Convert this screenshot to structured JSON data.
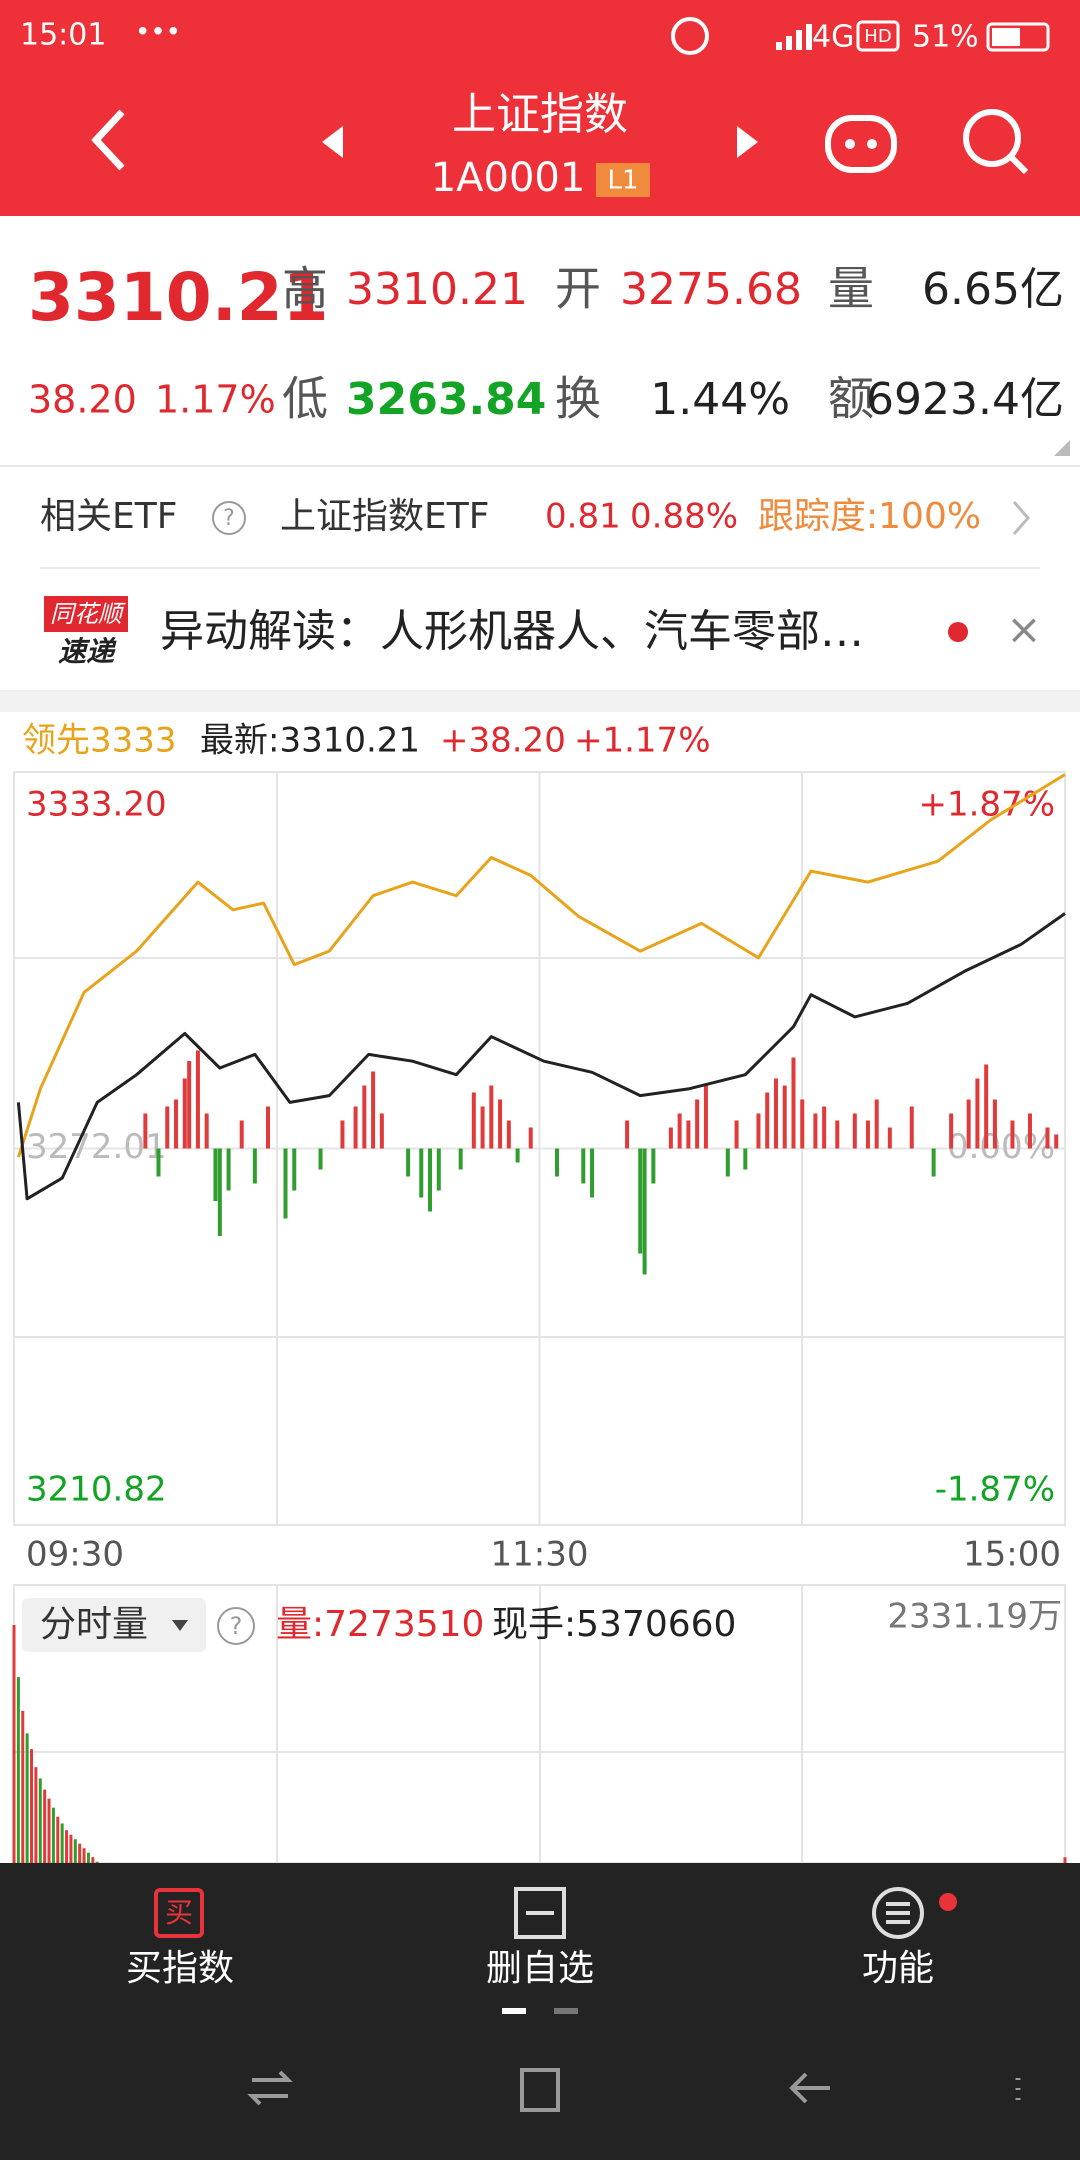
{
  "status_bar": {
    "time": "15:01",
    "dots": "•••",
    "network": "4G",
    "hd": "HD",
    "battery": "51%"
  },
  "header": {
    "title": "上证指数",
    "code": "1A0001",
    "level": "L1"
  },
  "quote": {
    "price": "3310.21",
    "change": "38.20",
    "change_pct": "1.17%",
    "high_label": "高",
    "high": "3310.21",
    "open_label": "开",
    "open": "3275.68",
    "volume_label": "量",
    "volume": "6.65亿",
    "low_label": "低",
    "low": "3263.84",
    "turnover_label": "换",
    "turnover": "1.44%",
    "amount_label": "额",
    "amount": "6923.4亿"
  },
  "etf": {
    "label": "相关ETF",
    "help": "?",
    "name": "上证指数ETF",
    "price": "0.81",
    "pct": "0.88%",
    "tracking": "跟踪度:100%"
  },
  "news": {
    "badge_top": "同花顺",
    "badge_bottom": "速递",
    "text": "异动解读：人形机器人、汽车零部…",
    "close": "×"
  },
  "chart_data": {
    "type": "line",
    "change": "+38.20",
    "change_pct": "+1.17%",
    "xlim": [
      0,
      240
    ],
    "xticks": [
      {
        "value": 0,
        "label": "09:30"
      },
      {
        "value": 120,
        "label": "11:30"
      },
      {
        "value": 240,
        "label": "15:00"
      }
    ],
    "ylim": [
      3210.82,
      3333.2
    ],
    "yticks": [
      3210.82,
      3272.01,
      {
        "value": 3333.2,
        "label": "3333.20"
      }
    ],
    "y2lim": [
      -1.87,
      1.87
    ],
    "y2ticks": [
      {
        "value": -1.87,
        "label": "-1.87%"
      },
      {
        "value": 0,
        "label": "0.00%"
      },
      {
        "value": 1.87,
        "label": "+1.87%"
      }
    ],
    "grid": true,
    "series": [
      {
        "name": "领先3333",
        "color": "#e8a31b",
        "x": [
          1,
          6,
          16,
          28,
          42,
          50,
          57,
          64,
          72,
          82,
          91,
          101,
          109,
          118,
          129,
          143,
          157,
          170,
          182,
          195,
          211,
          223,
          240
        ],
        "values": [
          3270.6,
          3281.7,
          3297.4,
          3304.1,
          3315.3,
          3310.8,
          3311.9,
          3301.9,
          3304.1,
          3313.1,
          3315.3,
          3313.1,
          3319.3,
          3316.4,
          3309.7,
          3304.1,
          3308.6,
          3303.0,
          3317.1,
          3315.3,
          3318.7,
          3325.4,
          3332.8
        ]
      },
      {
        "name": "最新:3310.21",
        "color": "#222222",
        "x": [
          1,
          3,
          11,
          19,
          28,
          39,
          47,
          55,
          63,
          72,
          81,
          91,
          101,
          109,
          121,
          132,
          143,
          154,
          167,
          178,
          182,
          192,
          204,
          217,
          230,
          240
        ],
        "values": [
          3279.5,
          3263.84,
          3267.2,
          3279.5,
          3284.0,
          3290.7,
          3285.1,
          3287.3,
          3279.5,
          3280.6,
          3287.3,
          3286.2,
          3284.0,
          3290.2,
          3286.2,
          3284.4,
          3280.6,
          3281.7,
          3284.0,
          3291.8,
          3297.0,
          3293.4,
          3295.6,
          3300.8,
          3305.2,
          3310.21
        ]
      }
    ],
    "breadth": {
      "up_color": "#e03a3a",
      "down_color": "#2f9e2f",
      "x": [
        30,
        33,
        35,
        37,
        39,
        40,
        42,
        44,
        46,
        47,
        49,
        52,
        55,
        58,
        62,
        64,
        70,
        75,
        78,
        80,
        82,
        84,
        90,
        93,
        95,
        97,
        102,
        105,
        107,
        109,
        111,
        113,
        115,
        118,
        124,
        130,
        132,
        140,
        143,
        144,
        146,
        150,
        152,
        154,
        156,
        158,
        163,
        165,
        167,
        170,
        172,
        174,
        176,
        178,
        180,
        183,
        185,
        188,
        192,
        195,
        197,
        200,
        205,
        210,
        214,
        218,
        220,
        222,
        224,
        228,
        232,
        236,
        238
      ],
      "values": [
        10,
        -8,
        12,
        14,
        20,
        25,
        28,
        10,
        -15,
        -25,
        -12,
        8,
        -10,
        12,
        -20,
        -12,
        -6,
        8,
        12,
        18,
        22,
        10,
        -8,
        -14,
        -18,
        -12,
        -6,
        16,
        12,
        18,
        14,
        8,
        -4,
        6,
        -8,
        -10,
        -14,
        8,
        -30,
        -36,
        -10,
        6,
        10,
        8,
        14,
        18,
        -8,
        8,
        -6,
        10,
        16,
        20,
        18,
        26,
        14,
        10,
        12,
        8,
        10,
        8,
        14,
        6,
        12,
        -8,
        10,
        14,
        20,
        24,
        14,
        8,
        10,
        6,
        4
      ]
    }
  },
  "volume_panel": {
    "label": "分时量",
    "help": "?",
    "volume": "量:7273510",
    "hands": "现手:5370660",
    "ylim": [
      0,
      2331.19
    ],
    "yticks": [
      {
        "value": 2331.19,
        "label": "2331.19万"
      }
    ],
    "x": [
      0,
      1,
      2,
      3,
      4,
      5,
      6,
      7,
      8,
      9,
      10,
      11,
      12,
      13,
      14,
      15,
      16,
      17,
      18,
      19,
      20,
      21,
      22,
      23,
      40,
      120,
      240
    ],
    "values": [
      2331.19,
      2100,
      1950,
      1850,
      1780,
      1700,
      1650,
      1600,
      1560,
      1520,
      1480,
      1450,
      1420,
      1400,
      1380,
      1360,
      1340,
      1320,
      1300,
      1280,
      1260,
      1240,
      1220,
      1200,
      1250,
      1180,
      1300
    ],
    "colors": [
      "#e03a3a",
      "#2f9e2f",
      "#e03a3a",
      "#2f9e2f",
      "#e03a3a",
      "#e03a3a",
      "#2f9e2f",
      "#e03a3a",
      "#e03a3a",
      "#2f9e2f",
      "#e03a3a",
      "#2f9e2f",
      "#e03a3a",
      "#e03a3a",
      "#2f9e2f",
      "#e03a3a",
      "#e03a3a",
      "#2f9e2f",
      "#e03a3a",
      "#2f9e2f",
      "#e03a3a",
      "#e03a3a",
      "#2f9e2f",
      "#e03a3a",
      "#e03a3a",
      "#2f9e2f",
      "#e03a3a"
    ]
  },
  "nav": {
    "items": [
      {
        "icon": "买",
        "label": "买指数"
      },
      {
        "label": "删自选"
      },
      {
        "label": "功能"
      }
    ]
  }
}
